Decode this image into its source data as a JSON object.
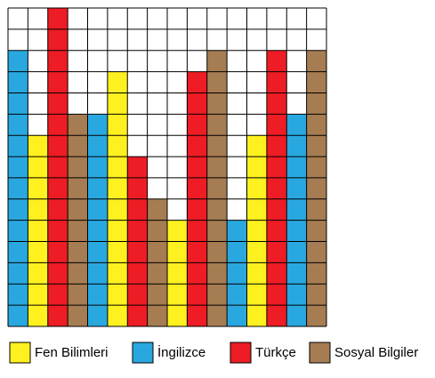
{
  "chart_data": {
    "type": "bar",
    "categories": [
      null,
      null,
      null,
      null,
      null,
      null,
      null,
      null,
      null,
      null,
      null,
      null,
      null,
      null,
      null,
      null
    ],
    "series": [
      {
        "name": "Fen Bilimleri",
        "color": "#fff01f",
        "values": [
          null,
          9,
          null,
          null,
          null,
          12,
          null,
          null,
          5,
          null,
          null,
          null,
          9,
          null,
          null,
          null
        ]
      },
      {
        "name": "İngilizce",
        "color": "#29a8e0",
        "values": [
          13,
          null,
          null,
          null,
          10,
          null,
          null,
          null,
          null,
          null,
          null,
          5,
          null,
          null,
          10,
          null
        ]
      },
      {
        "name": "Türkçe",
        "color": "#ee1c24",
        "values": [
          null,
          null,
          15,
          null,
          null,
          null,
          8,
          null,
          null,
          12,
          null,
          null,
          null,
          13,
          null,
          null
        ]
      },
      {
        "name": "Sosyal Bilgiler",
        "color": "#a67c52",
        "values": [
          null,
          null,
          null,
          10,
          null,
          null,
          null,
          6,
          null,
          null,
          13,
          null,
          null,
          null,
          null,
          13
        ]
      }
    ],
    "ylim": [
      0,
      15
    ],
    "grid": true,
    "legend": "bottom"
  }
}
